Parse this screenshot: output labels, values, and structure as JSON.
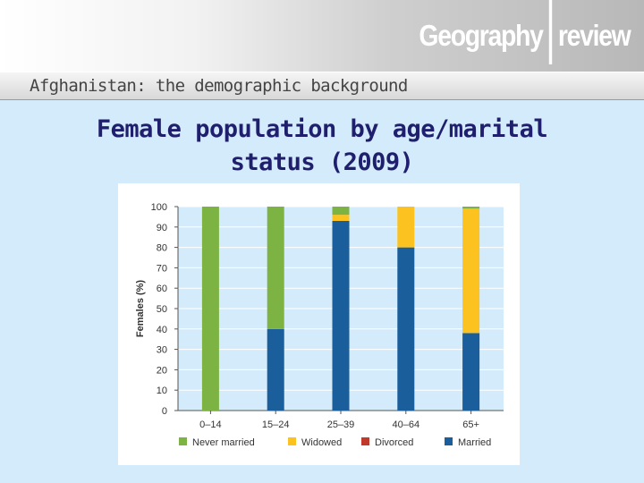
{
  "header": {
    "logo_left": "Geography",
    "logo_right": "review",
    "subtitle": "Afghanistan: the demographic background"
  },
  "slide": {
    "title_line1": "Female population by age/marital",
    "title_line2": "status (2009)"
  },
  "chart_data": {
    "type": "bar",
    "stacked": true,
    "title": "Female population by age/marital status (2009)",
    "xlabel": "",
    "ylabel": "Females (%)",
    "ylim": [
      0,
      100
    ],
    "yticks": [
      0,
      10,
      20,
      30,
      40,
      50,
      60,
      70,
      80,
      90,
      100
    ],
    "grid": true,
    "legend_position": "bottom",
    "categories": [
      "0–14",
      "15–24",
      "25–39",
      "40–64",
      "65+"
    ],
    "series": [
      {
        "name": "Married",
        "color": "#1a5e9b",
        "values": [
          0,
          40,
          93,
          80,
          38
        ]
      },
      {
        "name": "Divorced",
        "color": "#c0392b",
        "values": [
          0,
          0,
          0,
          0,
          0
        ]
      },
      {
        "name": "Widowed",
        "color": "#fcc320",
        "values": [
          0,
          0,
          3,
          20,
          61
        ]
      },
      {
        "name": "Never married",
        "color": "#7cb342",
        "values": [
          100,
          60,
          4,
          0,
          1
        ]
      }
    ],
    "legend_order": [
      "Never married",
      "Widowed",
      "Divorced",
      "Married"
    ]
  }
}
